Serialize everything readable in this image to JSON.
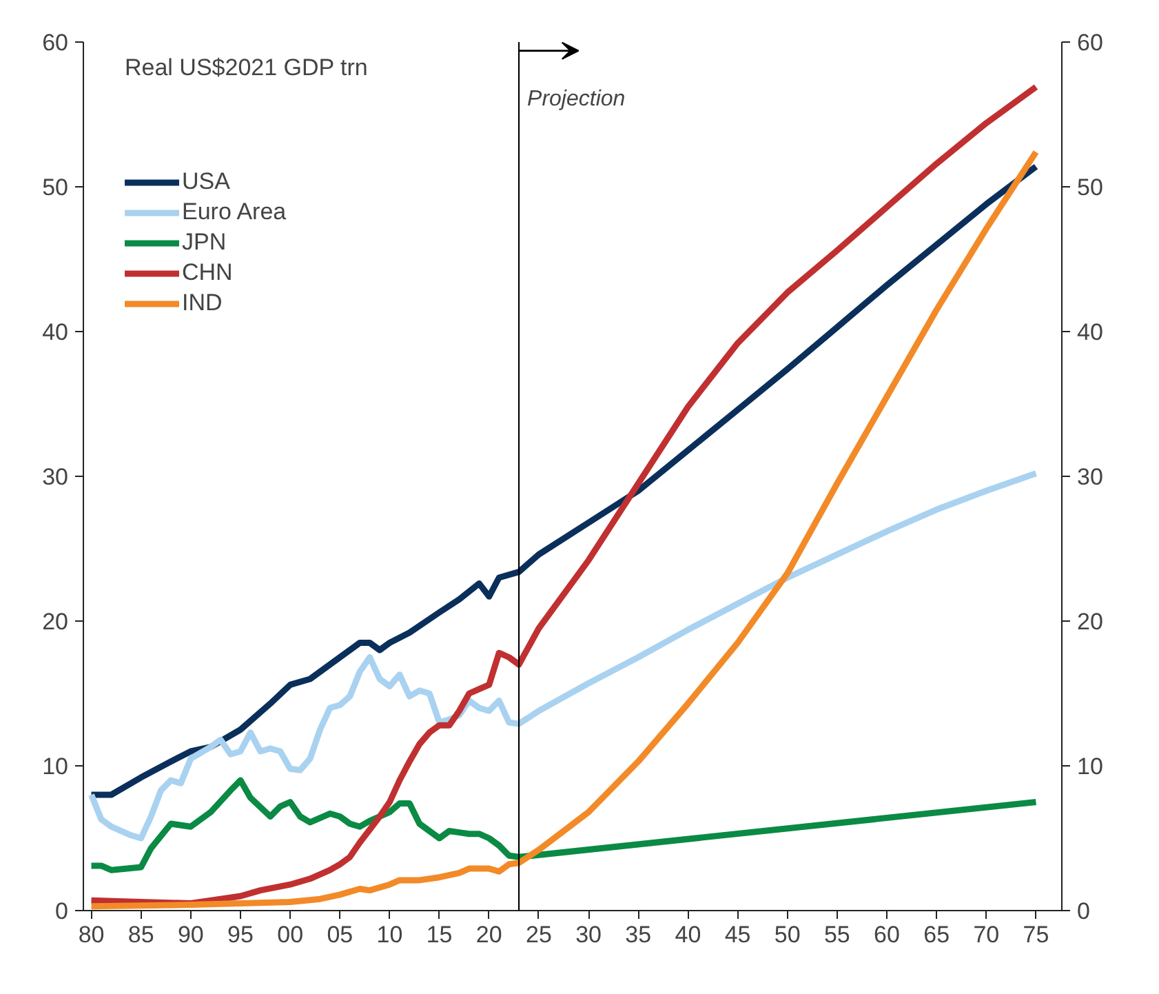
{
  "chart_data": {
    "type": "line",
    "title": "Real US$2021 GDP trn",
    "series": [
      {
        "name": "USA",
        "color": "#0b2f5b",
        "x": [
          1980,
          1982,
          1985,
          1988,
          1990,
          1992,
          1995,
          1998,
          2000,
          2002,
          2005,
          2007,
          2008,
          2009,
          2010,
          2012,
          2015,
          2017,
          2019,
          2020,
          2021,
          2023,
          2025,
          2030,
          2035,
          2040,
          2045,
          2050,
          2055,
          2060,
          2065,
          2070,
          2075
        ],
        "values": [
          8.0,
          8.0,
          9.2,
          10.3,
          11.0,
          11.3,
          12.5,
          14.3,
          15.6,
          16.0,
          17.5,
          18.5,
          18.5,
          18.0,
          18.5,
          19.2,
          20.6,
          21.5,
          22.6,
          21.7,
          23.0,
          23.4,
          24.6,
          26.8,
          29.0,
          31.8,
          34.6,
          37.4,
          40.3,
          43.2,
          46.0,
          48.8,
          51.4
        ]
      },
      {
        "name": "Euro Area",
        "color": "#a9d2f0",
        "x": [
          1980,
          1981,
          1982,
          1984,
          1985,
          1986,
          1987,
          1988,
          1989,
          1990,
          1992,
          1993,
          1994,
          1995,
          1996,
          1997,
          1998,
          1999,
          2000,
          2001,
          2002,
          2003,
          2004,
          2005,
          2006,
          2007,
          2008,
          2009,
          2010,
          2011,
          2012,
          2013,
          2014,
          2015,
          2016,
          2017,
          2018,
          2019,
          2020,
          2021,
          2022,
          2023,
          2025,
          2030,
          2035,
          2040,
          2045,
          2050,
          2055,
          2060,
          2065,
          2070,
          2075
        ],
        "values": [
          8.0,
          6.3,
          5.8,
          5.2,
          5.0,
          6.5,
          8.3,
          9.0,
          8.8,
          10.5,
          11.3,
          11.8,
          10.8,
          11.0,
          12.3,
          11.0,
          11.2,
          11.0,
          9.8,
          9.7,
          10.5,
          12.5,
          14.0,
          14.2,
          14.8,
          16.5,
          17.5,
          16.0,
          15.5,
          16.3,
          14.8,
          15.2,
          15.0,
          13.0,
          13.2,
          13.5,
          14.5,
          14.0,
          13.8,
          14.5,
          13.0,
          12.9,
          13.8,
          15.7,
          17.5,
          19.4,
          21.2,
          23.0,
          24.6,
          26.2,
          27.7,
          29.0,
          30.2
        ]
      },
      {
        "name": "JPN",
        "color": "#0a8a44",
        "x": [
          1980,
          1981,
          1982,
          1985,
          1986,
          1988,
          1990,
          1992,
          1994,
          1995,
          1996,
          1998,
          1999,
          2000,
          2001,
          2002,
          2004,
          2005,
          2006,
          2007,
          2008,
          2010,
          2011,
          2012,
          2013,
          2014,
          2015,
          2016,
          2017,
          2018,
          2019,
          2020,
          2021,
          2022,
          2023,
          2075
        ],
        "values": [
          3.1,
          3.1,
          2.8,
          3.0,
          4.3,
          6.0,
          5.8,
          6.8,
          8.3,
          9.0,
          7.8,
          6.5,
          7.2,
          7.5,
          6.5,
          6.1,
          6.7,
          6.5,
          6.0,
          5.8,
          6.2,
          6.8,
          7.4,
          7.4,
          6.0,
          5.5,
          5.0,
          5.5,
          5.4,
          5.3,
          5.3,
          5.0,
          4.5,
          3.8,
          3.7,
          7.5
        ]
      },
      {
        "name": "CHN",
        "color": "#c03030",
        "x": [
          1980,
          1985,
          1990,
          1993,
          1995,
          1997,
          2000,
          2002,
          2004,
          2005,
          2006,
          2007,
          2008,
          2009,
          2010,
          2011,
          2012,
          2013,
          2014,
          2015,
          2016,
          2017,
          2018,
          2019,
          2020,
          2021,
          2022,
          2023,
          2025,
          2030,
          2035,
          2040,
          2045,
          2050,
          2055,
          2060,
          2065,
          2070,
          2075
        ],
        "values": [
          0.7,
          0.6,
          0.5,
          0.8,
          1.0,
          1.4,
          1.8,
          2.2,
          2.8,
          3.2,
          3.7,
          4.7,
          5.6,
          6.5,
          7.5,
          9.0,
          10.3,
          11.5,
          12.3,
          12.8,
          12.8,
          13.8,
          15.0,
          15.3,
          15.6,
          17.8,
          17.5,
          17.0,
          19.5,
          24.2,
          29.5,
          34.8,
          39.2,
          42.7,
          45.6,
          48.6,
          51.6,
          54.4,
          56.9
        ]
      },
      {
        "name": "IND",
        "color": "#f28a28",
        "x": [
          1980,
          1990,
          1995,
          2000,
          2003,
          2005,
          2007,
          2008,
          2010,
          2011,
          2013,
          2015,
          2017,
          2018,
          2020,
          2021,
          2022,
          2023,
          2025,
          2030,
          2035,
          2040,
          2045,
          2050,
          2055,
          2060,
          2065,
          2070,
          2075
        ],
        "values": [
          0.3,
          0.4,
          0.5,
          0.6,
          0.8,
          1.1,
          1.5,
          1.4,
          1.8,
          2.1,
          2.1,
          2.3,
          2.6,
          2.9,
          2.9,
          2.7,
          3.2,
          3.3,
          4.2,
          6.8,
          10.3,
          14.3,
          18.5,
          23.3,
          29.5,
          35.5,
          41.5,
          47.1,
          52.4
        ]
      }
    ],
    "xlim": [
      1979.2,
      2077.6
    ],
    "xticks": [
      {
        "value": 1980,
        "label": "80"
      },
      {
        "value": 1985,
        "label": "85"
      },
      {
        "value": 1990,
        "label": "90"
      },
      {
        "value": 1995,
        "label": "95"
      },
      {
        "value": 2000,
        "label": "00"
      },
      {
        "value": 2005,
        "label": "05"
      },
      {
        "value": 2010,
        "label": "10"
      },
      {
        "value": 2015,
        "label": "15"
      },
      {
        "value": 2020,
        "label": "20"
      },
      {
        "value": 2025,
        "label": "25"
      },
      {
        "value": 2030,
        "label": "30"
      },
      {
        "value": 2035,
        "label": "35"
      },
      {
        "value": 2040,
        "label": "40"
      },
      {
        "value": 2045,
        "label": "45"
      },
      {
        "value": 2050,
        "label": "50"
      },
      {
        "value": 2055,
        "label": "55"
      },
      {
        "value": 2060,
        "label": "60"
      },
      {
        "value": 2065,
        "label": "65"
      },
      {
        "value": 2070,
        "label": "70"
      },
      {
        "value": 2075,
        "label": "75"
      }
    ],
    "ylim": [
      0,
      60
    ],
    "yticks": [
      0,
      10,
      20,
      30,
      40,
      50,
      60
    ],
    "y2lim": [
      0,
      60
    ],
    "y2ticks": [
      0,
      10,
      20,
      30,
      40,
      50,
      60
    ],
    "ref_lines": [
      {
        "axis": "x",
        "value": 2023,
        "label": "Projection",
        "color": "#000000"
      }
    ],
    "grid": false,
    "legend": "top left",
    "line_style": "solid",
    "marker": "none"
  }
}
